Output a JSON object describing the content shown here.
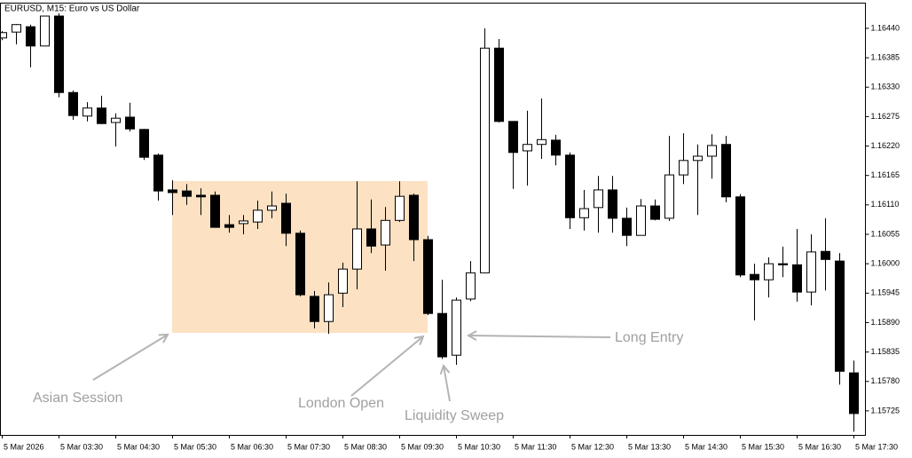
{
  "chart_data": {
    "type": "candlestick",
    "title": "EURUSD, M15:  Euro vs US Dollar",
    "categories": [
      "5 Mar 2026",
      null,
      null,
      null,
      "5 Mar 03:30",
      null,
      null,
      null,
      "5 Mar 04:30",
      null,
      null,
      null,
      "5 Mar 05:30",
      null,
      null,
      null,
      "5 Mar 06:30",
      null,
      null,
      null,
      "5 Mar 07:30",
      null,
      null,
      null,
      "5 Mar 08:30",
      null,
      null,
      null,
      "5 Mar 09:30",
      null,
      null,
      null,
      "5 Mar 10:30",
      null,
      null,
      null,
      "5 Mar 11:30",
      null,
      null,
      null,
      "5 Mar 12:30",
      null,
      null,
      null,
      "5 Mar 13:30",
      null,
      null,
      null,
      "5 Mar 14:30",
      null,
      null,
      null,
      "5 Mar 15:30",
      null,
      null,
      null,
      "5 Mar 16:30",
      null,
      null,
      null,
      "5 Mar 17:30"
    ],
    "open": [
      1.16422,
      1.16433,
      1.16443,
      1.16407,
      1.16463,
      1.1632,
      1.16276,
      1.16291,
      1.16264,
      1.16274,
      1.16251,
      1.16203,
      1.16138,
      1.16136,
      1.16128,
      1.16128,
      1.16073,
      1.16075,
      1.16078,
      1.161,
      1.16113,
      1.16057,
      1.15939,
      1.15892,
      1.15945,
      1.1599,
      1.16065,
      1.16035,
      1.16081,
      1.16128,
      1.16045,
      1.15907,
      1.15829,
      1.15934,
      1.15983,
      1.16403,
      1.16266,
      1.16211,
      1.16223,
      1.16231,
      1.16203,
      1.16086,
      1.16105,
      1.16138,
      1.16085,
      1.16053,
      1.16108,
      1.16085,
      1.16166,
      1.16193,
      1.16201,
      1.16223,
      1.16125,
      1.1598,
      1.1597,
      1.16,
      1.15998,
      1.15947,
      1.16023,
      1.16005,
      1.15796
    ],
    "high": [
      1.16435,
      1.16448,
      1.16447,
      1.16463,
      1.16468,
      1.16324,
      1.16302,
      1.16314,
      1.16281,
      1.16301,
      1.16252,
      1.16206,
      1.16156,
      1.16149,
      1.16141,
      1.16135,
      1.16091,
      1.16091,
      1.16118,
      1.16135,
      1.16131,
      1.16062,
      1.15949,
      1.15965,
      1.16002,
      1.16154,
      1.1612,
      1.16106,
      1.16154,
      1.16131,
      1.16052,
      1.1597,
      1.15937,
      1.16005,
      1.1644,
      1.1642,
      1.16266,
      1.16286,
      1.16309,
      1.16241,
      1.16208,
      1.16138,
      1.16164,
      1.16164,
      1.16105,
      1.16121,
      1.1612,
      1.16239,
      1.16244,
      1.16223,
      1.16242,
      1.16239,
      1.1613,
      1.16,
      1.16012,
      1.16032,
      1.16065,
      1.16055,
      1.16085,
      1.1602,
      1.15819
    ],
    "low": [
      1.16418,
      1.1641,
      1.16367,
      1.16407,
      1.16311,
      1.16269,
      1.16266,
      1.16261,
      1.16219,
      1.16247,
      1.16194,
      1.16118,
      1.16091,
      1.1611,
      1.16091,
      1.16068,
      1.16058,
      1.16055,
      1.16065,
      1.16085,
      1.16033,
      1.15939,
      1.15879,
      1.15869,
      1.15919,
      1.15952,
      1.1602,
      1.15987,
      1.16078,
      1.16005,
      1.15904,
      1.15822,
      1.15811,
      1.1593,
      1.15983,
      1.16264,
      1.1614,
      1.16146,
      1.16196,
      1.16184,
      1.16065,
      1.16062,
      1.16058,
      1.16058,
      1.16033,
      1.16053,
      1.16081,
      1.1608,
      1.16149,
      1.16091,
      1.16159,
      1.16115,
      1.15975,
      1.15894,
      1.15937,
      1.15975,
      1.15929,
      1.15922,
      1.1595,
      1.15774,
      1.15686
    ],
    "close": [
      1.16432,
      1.16447,
      1.16407,
      1.16463,
      1.1632,
      1.16277,
      1.16291,
      1.16262,
      1.16272,
      1.16252,
      1.16199,
      1.16136,
      1.16133,
      1.16126,
      1.16125,
      1.16068,
      1.16068,
      1.1608,
      1.161,
      1.16108,
      1.16057,
      1.15942,
      1.15892,
      1.15942,
      1.1599,
      1.16065,
      1.16033,
      1.16081,
      1.16126,
      1.16045,
      1.15907,
      1.15826,
      1.15932,
      1.15983,
      1.16403,
      1.16266,
      1.16208,
      1.16223,
      1.16232,
      1.16203,
      1.16086,
      1.16103,
      1.16138,
      1.16085,
      1.16053,
      1.16108,
      1.16083,
      1.16166,
      1.16193,
      1.16201,
      1.16221,
      1.16125,
      1.15979,
      1.1597,
      1.16,
      1.15998,
      1.15947,
      1.16022,
      1.16008,
      1.15799,
      1.1572
    ],
    "up_color": "#ffffff",
    "down_color": "#000000",
    "ylim": [
      1.1568,
      1.16488
    ],
    "yticks": [
      {
        "value": 1.1644,
        "label": "1.16440"
      },
      {
        "value": 1.16385,
        "label": "1.16385"
      },
      {
        "value": 1.1633,
        "label": "1.16330"
      },
      {
        "value": 1.16275,
        "label": "1.16275"
      },
      {
        "value": 1.1622,
        "label": "1.16220"
      },
      {
        "value": 1.16165,
        "label": "1.16165"
      },
      {
        "value": 1.1611,
        "label": "1.16110"
      },
      {
        "value": 1.16055,
        "label": "1.16055"
      },
      {
        "value": 1.16,
        "label": "1.16000"
      },
      {
        "value": 1.15945,
        "label": "1.15945"
      },
      {
        "value": 1.1589,
        "label": "1.15890"
      },
      {
        "value": 1.15835,
        "label": "1.15835"
      },
      {
        "value": 1.1578,
        "label": "1.15780"
      },
      {
        "value": 1.15725,
        "label": "1.15725"
      }
    ],
    "grid": false,
    "annotations": [
      "Asian Session",
      "London Open",
      "Liquidity Sweep",
      "Long Entry"
    ]
  }
}
